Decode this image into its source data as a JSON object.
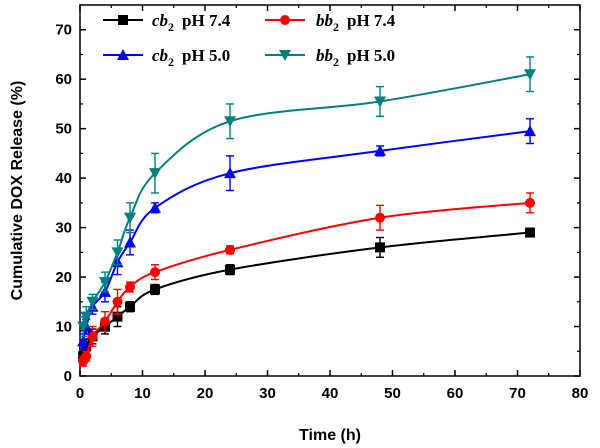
{
  "chart_data": {
    "type": "line",
    "xlabel": "Time  (h)",
    "ylabel": "Cumulative DOX Release  (%)",
    "xlim": [
      0,
      80
    ],
    "ylim": [
      0,
      75
    ],
    "xticks": [
      "0",
      "10",
      "20",
      "30",
      "40",
      "50",
      "60",
      "70",
      "80"
    ],
    "yticks": [
      "0",
      "10",
      "20",
      "30",
      "40",
      "50",
      "60",
      "70"
    ],
    "grid": false,
    "legend_position": "top-left",
    "x": [
      0.5,
      1,
      2,
      4,
      6,
      8,
      12,
      24,
      48,
      72
    ],
    "series": [
      {
        "sample": "cb",
        "subscript": "2",
        "condition": "pH 7.4",
        "color": "#000000",
        "marker": "square",
        "values": [
          4,
          6,
          8,
          10,
          12,
          14,
          17.5,
          21.5,
          26,
          29
        ],
        "errors": [
          1,
          1.5,
          1.5,
          1.5,
          2,
          1,
          1,
          1,
          2,
          0.8
        ]
      },
      {
        "sample": "bb",
        "subscript": "2",
        "condition": "pH 7.4",
        "color": "#ff0000",
        "marker": "circle",
        "values": [
          3,
          4,
          8,
          11,
          15,
          18,
          21,
          25.5,
          32,
          35
        ],
        "errors": [
          1,
          1,
          2,
          2,
          2.5,
          1,
          1.5,
          0.8,
          2.5,
          2
        ]
      },
      {
        "sample": "cb",
        "subscript": "2",
        "condition": "pH 5.0",
        "color": "#0000ff",
        "marker": "triangle-up",
        "values": [
          7,
          10,
          14,
          17,
          23,
          27,
          34,
          41,
          45.5,
          49.5
        ],
        "errors": [
          1.5,
          1.5,
          1.5,
          2,
          2.5,
          2.5,
          1,
          3.5,
          1,
          2.5
        ]
      },
      {
        "sample": "bb",
        "subscript": "2",
        "condition": "pH 5.0",
        "color": "#008080",
        "marker": "triangle-down",
        "values": [
          10,
          12,
          15,
          19,
          25,
          32,
          41,
          51.5,
          55.5,
          61
        ],
        "errors": [
          2,
          2,
          1.5,
          2,
          2.5,
          3,
          4,
          3.5,
          3,
          3.5
        ]
      }
    ]
  }
}
